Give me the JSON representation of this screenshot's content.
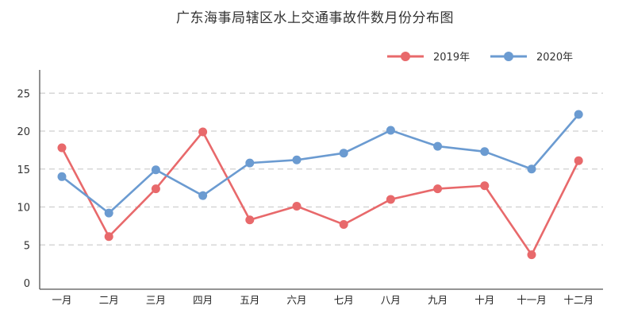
{
  "chart_data": {
    "type": "line",
    "title": "广东海事局辖区水上交通事故件数月份分布图",
    "xlabel": "",
    "ylabel": "",
    "categories": [
      "一月",
      "二月",
      "三月",
      "四月",
      "五月",
      "六月",
      "七月",
      "八月",
      "九月",
      "十月",
      "十一月",
      "十二月"
    ],
    "ylim": [
      0,
      25
    ],
    "yticks": [
      0,
      5,
      10,
      15,
      20,
      25
    ],
    "grid": "horizontal-dashed",
    "legend": "top-right",
    "series": [
      {
        "name": "2019年",
        "color": "#e8696b",
        "values": [
          17.8,
          6.1,
          12.4,
          19.9,
          8.3,
          10.1,
          7.7,
          11.0,
          12.4,
          12.8,
          3.7,
          16.1
        ]
      },
      {
        "name": "2020年",
        "color": "#6b9bd1",
        "values": [
          14.0,
          9.2,
          14.9,
          11.5,
          15.8,
          16.2,
          17.1,
          20.1,
          18.0,
          17.3,
          15.0,
          22.2
        ]
      }
    ]
  }
}
